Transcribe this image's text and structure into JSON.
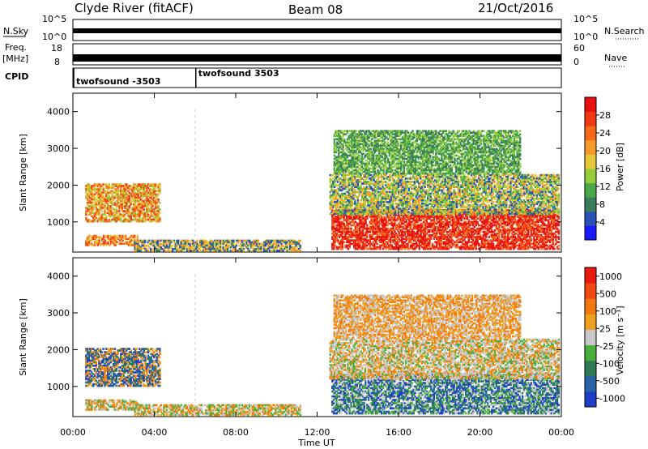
{
  "header": {
    "title": "Clyde River (fitACF)",
    "beam": "Beam 08",
    "date": "21/Oct/2016"
  },
  "strip_labels": {
    "nsky": "N.Sky",
    "freq": "Freq.",
    "freq_unit": "[MHz]",
    "cpid": "CPID",
    "nsearch": "N.Search",
    "nave": "Nave",
    "nsky_ticks": [
      "10^5",
      "10^0"
    ],
    "nsearch_ticks": [
      "10^5",
      "10^0"
    ],
    "freq_ticks": [
      "18",
      "8"
    ],
    "nave_ticks": [
      "60",
      "0"
    ]
  },
  "cpid_entries": [
    {
      "text": "twofsound -3503",
      "start_hour": 0
    },
    {
      "text": "twofsound 3503",
      "start_hour": 6
    }
  ],
  "chart_data": [
    {
      "type": "heatmap",
      "name": "power",
      "ylabel": "Slant Range [km]",
      "xlabel": "Time UT",
      "x_ticks": [
        "00:00",
        "04:00",
        "08:00",
        "12:00",
        "16:00",
        "20:00",
        "00:00"
      ],
      "x_range_hours": [
        0,
        24
      ],
      "y_ticks": [
        1000,
        2000,
        3000,
        4000
      ],
      "y_range_km": [
        180,
        4500
      ],
      "colorbar": {
        "label": "Power [dB]",
        "ticks": [
          "4",
          "8",
          "12",
          "16",
          "20",
          "24",
          "28"
        ],
        "colors": [
          "#1a1aff",
          "#2a52b4",
          "#3a7d5a",
          "#4aa84a",
          "#96cd3a",
          "#e6c83a",
          "#f39a2a",
          "#f26a1a",
          "#f03a14",
          "#e81010"
        ]
      },
      "regions": [
        {
          "h0": 0.6,
          "h1": 4.3,
          "r0": 1000,
          "r1": 2050,
          "levels": [
            4,
            5,
            6,
            7,
            8
          ]
        },
        {
          "h0": 0.6,
          "h1": 3.2,
          "r0": 350,
          "r1": 650,
          "levels": [
            5,
            6,
            7,
            8
          ]
        },
        {
          "h0": 3.0,
          "h1": 11.2,
          "r0": 200,
          "r1": 520,
          "levels": [
            1,
            2,
            5,
            6
          ]
        },
        {
          "h0": 12.7,
          "h1": 23.9,
          "r0": 250,
          "r1": 1350,
          "levels": [
            7,
            8,
            9,
            9
          ]
        },
        {
          "h0": 12.6,
          "h1": 23.9,
          "r0": 1200,
          "r1": 2300,
          "levels": [
            1,
            3,
            4,
            5,
            6
          ]
        },
        {
          "h0": 12.8,
          "h1": 22.0,
          "r0": 2300,
          "r1": 3500,
          "levels": [
            2,
            3,
            4
          ]
        }
      ]
    },
    {
      "type": "heatmap",
      "name": "velocity",
      "ylabel": "Slant Range [km]",
      "xlabel": "Time UT",
      "x_ticks": [
        "00:00",
        "04:00",
        "08:00",
        "12:00",
        "16:00",
        "20:00",
        "00:00"
      ],
      "x_range_hours": [
        0,
        24
      ],
      "y_ticks": [
        1000,
        2000,
        3000,
        4000
      ],
      "y_range_km": [
        180,
        4500
      ],
      "colorbar": {
        "label": "Velocity [m s⁻¹]",
        "ticks": [
          "1000",
          "500",
          "100",
          "25",
          "-25",
          "-100",
          "-500",
          "-1000"
        ],
        "colors": [
          "#1e3ec8",
          "#2a64a8",
          "#2f7a55",
          "#4aaf3a",
          "#c8c8c8",
          "#f0a020",
          "#f07a10",
          "#f04a10",
          "#e81a10"
        ]
      },
      "regions": [
        {
          "h0": 0.6,
          "h1": 4.3,
          "r0": 1000,
          "r1": 2050,
          "levels": [
            0,
            1,
            2,
            5,
            6
          ]
        },
        {
          "h0": 0.6,
          "h1": 3.2,
          "r0": 350,
          "r1": 650,
          "levels": [
            3,
            4,
            5,
            6
          ]
        },
        {
          "h0": 3.0,
          "h1": 11.2,
          "r0": 200,
          "r1": 520,
          "levels": [
            3,
            5,
            6,
            4
          ]
        },
        {
          "h0": 12.7,
          "h1": 23.9,
          "r0": 250,
          "r1": 1350,
          "levels": [
            0,
            1,
            2,
            3,
            4
          ]
        },
        {
          "h0": 12.6,
          "h1": 23.9,
          "r0": 1200,
          "r1": 2300,
          "levels": [
            4,
            4,
            5,
            6,
            3
          ]
        },
        {
          "h0": 12.8,
          "h1": 22.0,
          "r0": 2300,
          "r1": 3500,
          "levels": [
            4,
            5,
            6
          ]
        }
      ]
    }
  ]
}
